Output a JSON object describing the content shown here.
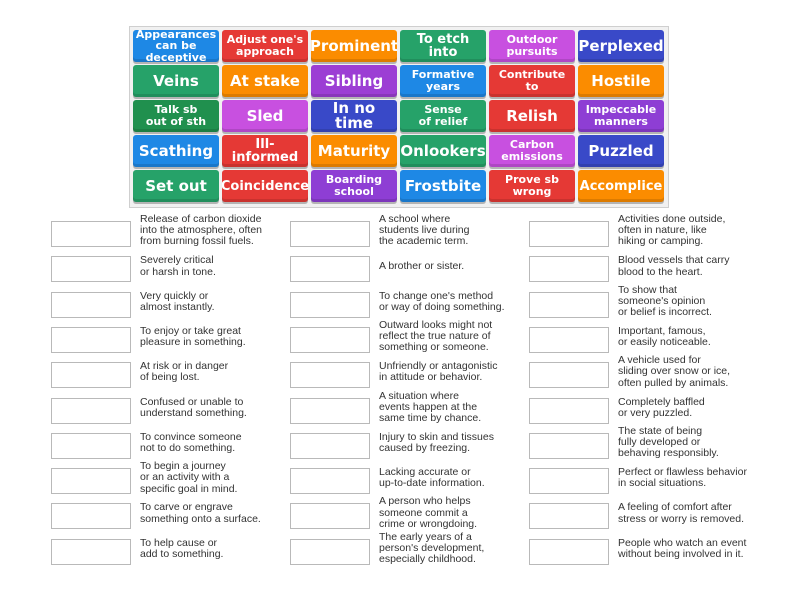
{
  "tiles": [
    {
      "label": "Appearances\ncan be deceptive",
      "color": "#1e88e5",
      "size": "sm"
    },
    {
      "label": "Adjust one's\napproach",
      "color": "#e53935",
      "size": "sm"
    },
    {
      "label": "Prominent",
      "color": "#fb8c00",
      "size": ""
    },
    {
      "label": "To etch into",
      "color": "#26a269",
      "size": "md"
    },
    {
      "label": "Outdoor\npursuits",
      "color": "#c850e0",
      "size": "sm"
    },
    {
      "label": "Perplexed",
      "color": "#3949c8",
      "size": ""
    },
    {
      "label": "Veins",
      "color": "#26a269",
      "size": ""
    },
    {
      "label": "At stake",
      "color": "#fb8c00",
      "size": ""
    },
    {
      "label": "Sibling",
      "color": "#9c3ed4",
      "size": ""
    },
    {
      "label": "Formative\nyears",
      "color": "#1e88e5",
      "size": "sm"
    },
    {
      "label": "Contribute to",
      "color": "#e53935",
      "size": "sm"
    },
    {
      "label": "Hostile",
      "color": "#fb8c00",
      "size": ""
    },
    {
      "label": "Talk sb\nout of sth",
      "color": "#20904e",
      "size": "sm"
    },
    {
      "label": "Sled",
      "color": "#c850e0",
      "size": ""
    },
    {
      "label": "In no time",
      "color": "#3949c8",
      "size": ""
    },
    {
      "label": "Sense\nof relief",
      "color": "#26a269",
      "size": "sm"
    },
    {
      "label": "Relish",
      "color": "#e53935",
      "size": ""
    },
    {
      "label": "Impeccable\nmanners",
      "color": "#8e3ed4",
      "size": "sm"
    },
    {
      "label": "Scathing",
      "color": "#1e88e5",
      "size": ""
    },
    {
      "label": "Ill-informed",
      "color": "#e53935",
      "size": "md"
    },
    {
      "label": "Maturity",
      "color": "#fb8c00",
      "size": ""
    },
    {
      "label": "Onlookers",
      "color": "#26a269",
      "size": ""
    },
    {
      "label": "Carbon\nemissions",
      "color": "#c850e0",
      "size": "sm"
    },
    {
      "label": "Puzzled",
      "color": "#3949c8",
      "size": ""
    },
    {
      "label": "Set out",
      "color": "#26a269",
      "size": ""
    },
    {
      "label": "Coincidence",
      "color": "#e53935",
      "size": "md"
    },
    {
      "label": "Boarding\nschool",
      "color": "#8e3ed4",
      "size": "sm"
    },
    {
      "label": "Frostbite",
      "color": "#1e88e5",
      "size": ""
    },
    {
      "label": "Prove sb\nwrong",
      "color": "#e53935",
      "size": "sm"
    },
    {
      "label": "Accomplice",
      "color": "#fb8c00",
      "size": "md"
    }
  ],
  "definitions": {
    "col1": [
      "Release of carbon dioxide\ninto the atmosphere, often\nfrom burning fossil fuels.",
      "Severely critical\nor harsh in tone.",
      "Very quickly or\nalmost instantly.",
      "To enjoy or take great\npleasure in something.",
      "At risk or in danger\nof being lost.",
      "Confused or unable to\nunderstand something.",
      "To convince someone\nnot to do something.",
      "To begin a journey\nor an activity with a\nspecific goal in mind.",
      "To carve or engrave\nsomething onto a surface.",
      "To help cause or\nadd to something."
    ],
    "col2": [
      "A school where\nstudents live during\nthe academic term.",
      "A brother or sister.",
      "To change one's method\nor way of doing something.",
      "Outward looks might not\nreflect the true nature of\nsomething or someone.",
      "Unfriendly or antagonistic\nin attitude or behavior.",
      "A situation where\nevents happen at the\nsame time by chance.",
      "Injury to skin and tissues\ncaused by freezing.",
      "Lacking accurate or\nup-to-date information.",
      "A person who helps\nsomeone commit a\ncrime or wrongdoing.",
      "The early years of a\nperson's development,\nespecially childhood."
    ],
    "col3": [
      "Activities done outside,\noften in nature, like\nhiking or camping.",
      "Blood vessels that carry\nblood to the heart.",
      "To show that\nsomeone's opinion\nor belief is incorrect.",
      "Important, famous,\nor easily noticeable.",
      "A vehicle used for\nsliding over snow or ice,\noften pulled by animals.",
      "Completely baffled\nor very puzzled.",
      "The state of being\nfully developed or\nbehaving responsibly.",
      "Perfect or flawless behavior\nin social situations.",
      "A feeling of comfort after\nstress or worry is removed.",
      "People who watch an event\nwithout being involved in it."
    ]
  }
}
